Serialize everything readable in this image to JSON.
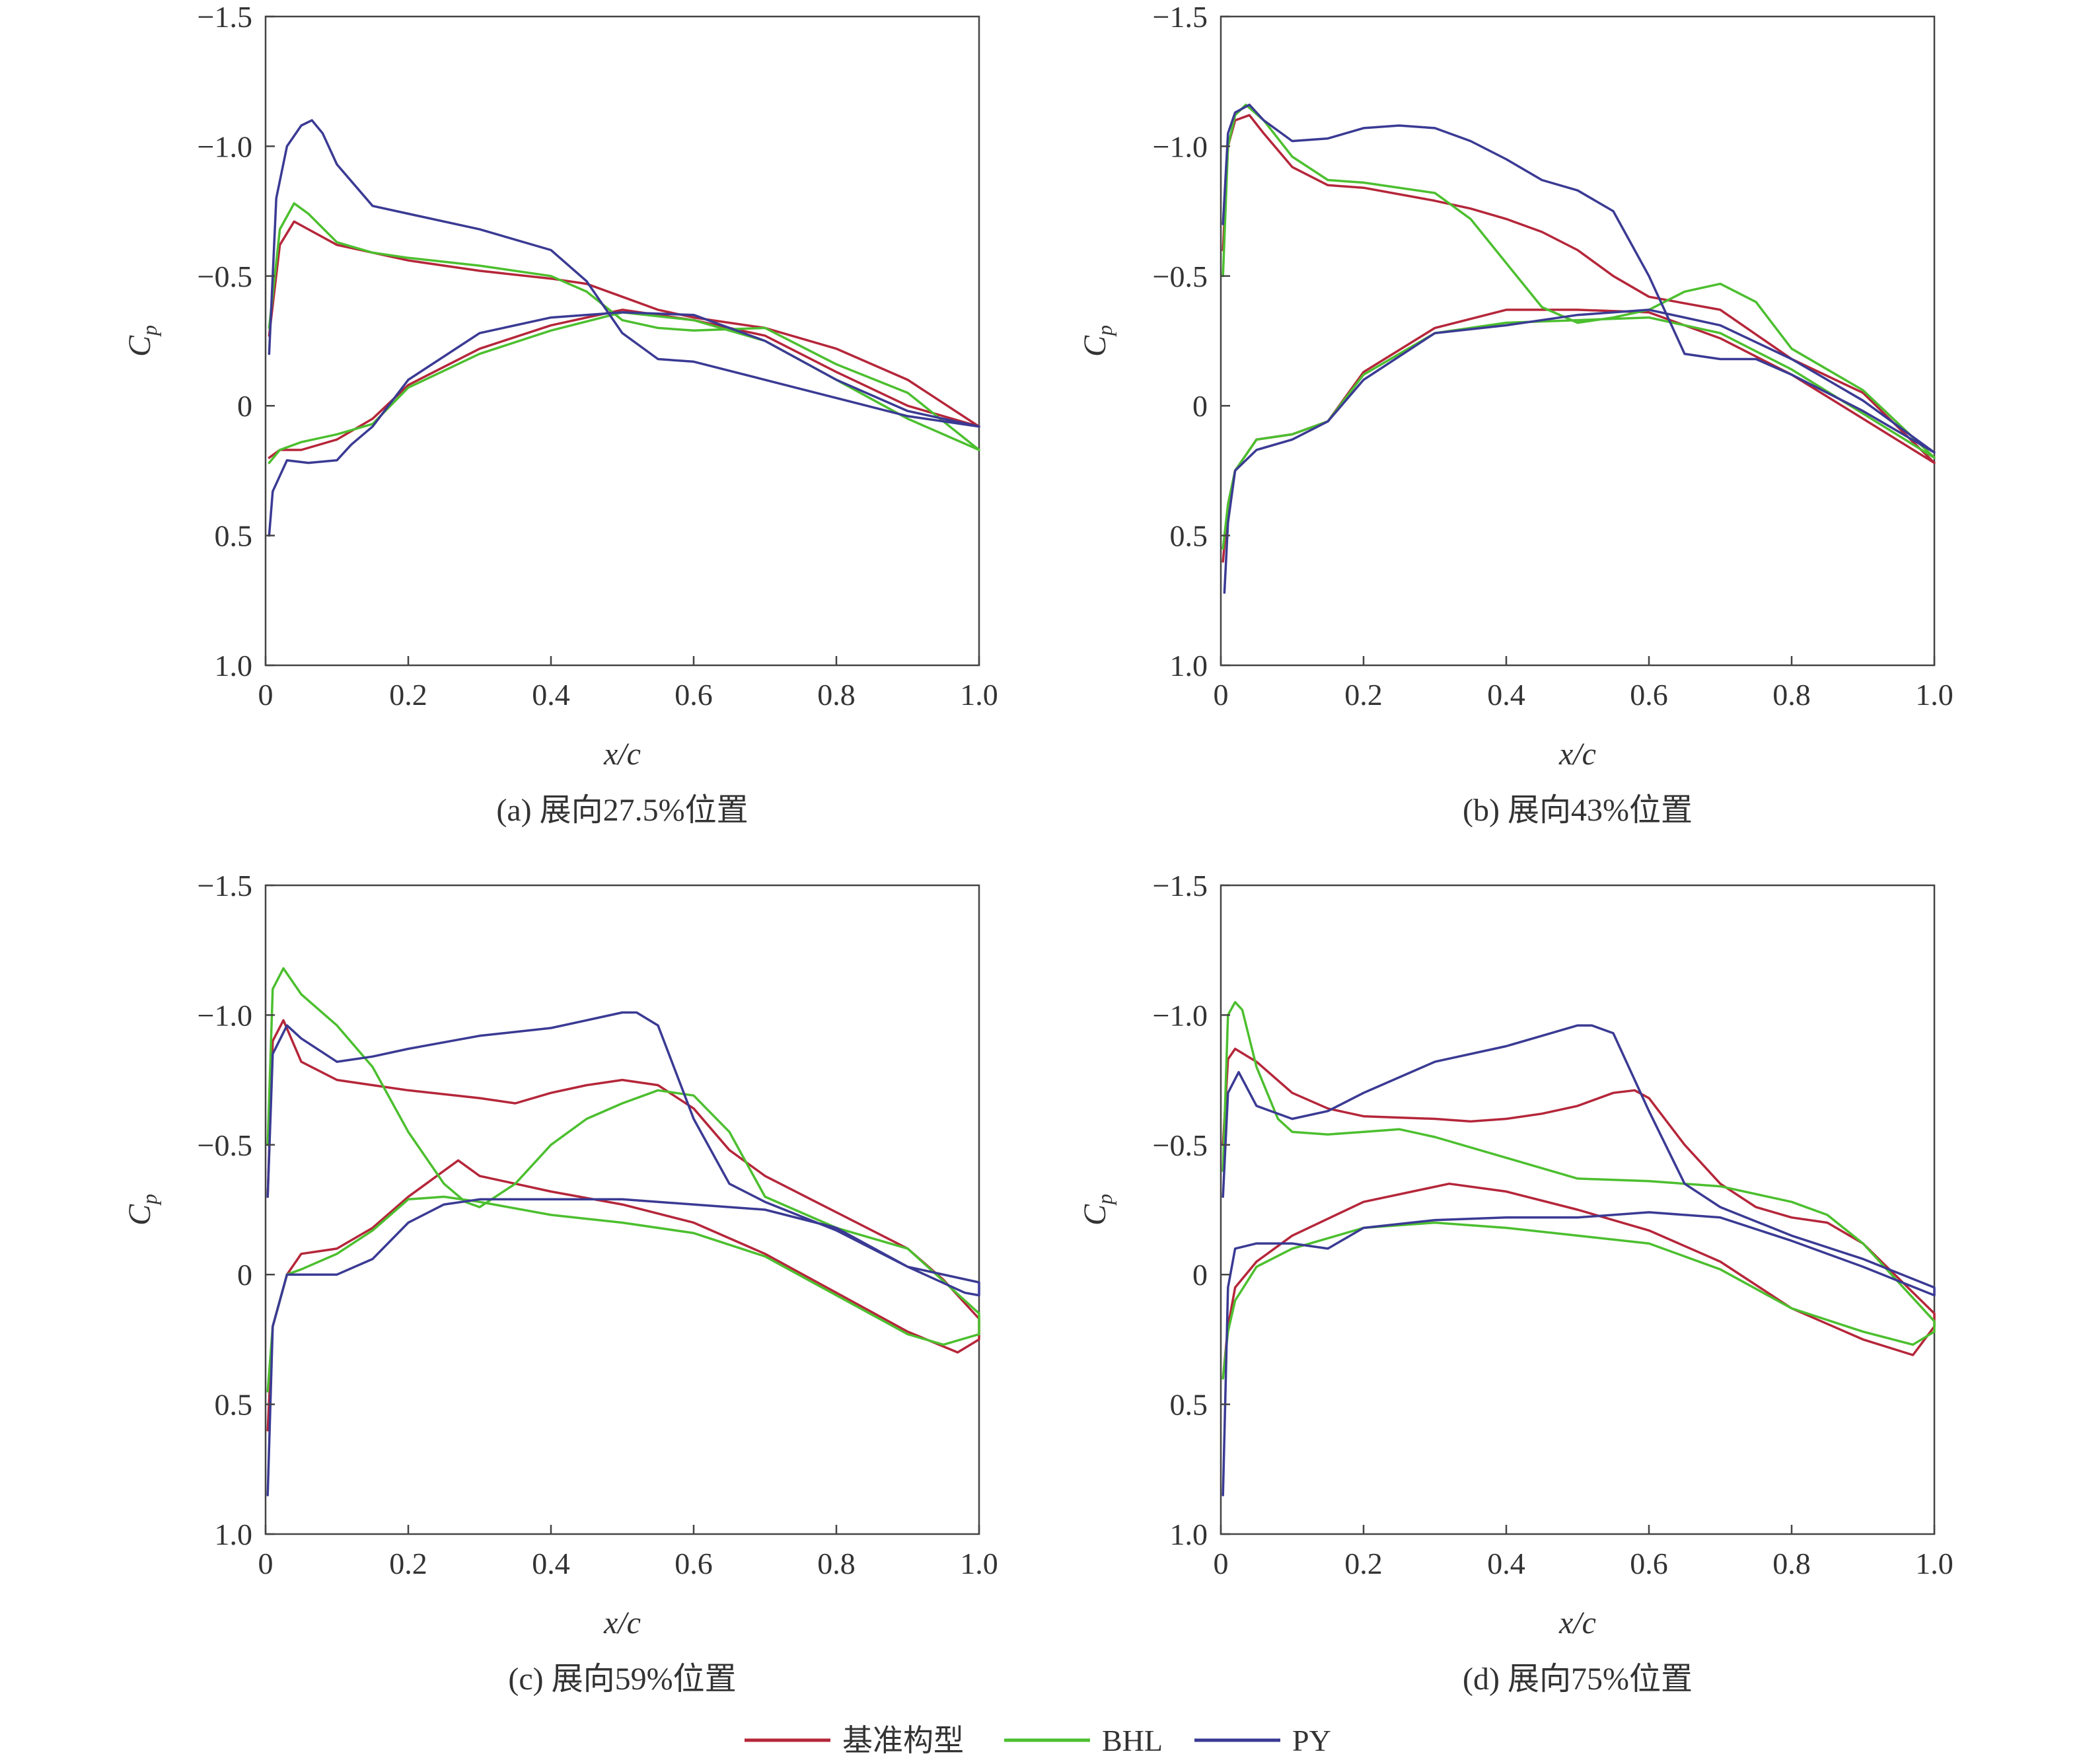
{
  "figure": {
    "series_colors": {
      "基准构型": "#b5263a",
      "BHL": "#4cbf2f",
      "PY": "#3a3a94"
    },
    "legend": [
      {
        "name": "基准构型",
        "color": "#b5263a"
      },
      {
        "name": "BHL",
        "color": "#4cbf2f"
      },
      {
        "name": "PY",
        "color": "#3a3a94"
      }
    ]
  },
  "chart_data": [
    {
      "type": "line",
      "caption": "(a) 展向27.5%位置",
      "xlabel": "x/c",
      "ylabel": "Cp",
      "xlim": [
        0,
        1.0
      ],
      "ylim": [
        -1.5,
        1.0
      ],
      "y_inverted": true,
      "xticks": [
        "0",
        "0.2",
        "0.4",
        "0.6",
        "0.8",
        "1.0"
      ],
      "yticks": [
        "−1.5",
        "−1.0",
        "−0.5",
        "0",
        "0.5",
        "1.0"
      ],
      "series": [
        {
          "name": "基准构型",
          "color": "#b5263a",
          "x": [
            0.005,
            0.02,
            0.04,
            0.06,
            0.1,
            0.15,
            0.2,
            0.3,
            0.4,
            0.45,
            0.5,
            0.55,
            0.6,
            0.7,
            0.8,
            0.9,
            1.0,
            1.0,
            0.9,
            0.8,
            0.7,
            0.6,
            0.5,
            0.4,
            0.3,
            0.2,
            0.15,
            0.1,
            0.05,
            0.02,
            0.005
          ],
          "y": [
            -0.27,
            -0.62,
            -0.71,
            -0.68,
            -0.62,
            -0.59,
            -0.56,
            -0.52,
            -0.49,
            -0.47,
            -0.42,
            -0.37,
            -0.34,
            -0.3,
            -0.22,
            -0.1,
            0.08,
            0.08,
            0.0,
            -0.13,
            -0.27,
            -0.33,
            -0.37,
            -0.31,
            -0.22,
            -0.08,
            0.05,
            0.13,
            0.17,
            0.17,
            0.2
          ]
        },
        {
          "name": "BHL",
          "color": "#4cbf2f",
          "x": [
            0.005,
            0.02,
            0.04,
            0.06,
            0.1,
            0.15,
            0.2,
            0.3,
            0.4,
            0.45,
            0.5,
            0.55,
            0.6,
            0.7,
            0.8,
            0.9,
            1.0,
            1.0,
            0.9,
            0.8,
            0.7,
            0.6,
            0.5,
            0.4,
            0.3,
            0.2,
            0.15,
            0.1,
            0.05,
            0.02,
            0.005
          ],
          "y": [
            -0.3,
            -0.68,
            -0.78,
            -0.74,
            -0.63,
            -0.59,
            -0.57,
            -0.54,
            -0.5,
            -0.44,
            -0.33,
            -0.3,
            -0.29,
            -0.3,
            -0.16,
            -0.05,
            0.17,
            0.17,
            0.05,
            -0.1,
            -0.25,
            -0.33,
            -0.36,
            -0.29,
            -0.2,
            -0.07,
            0.07,
            0.11,
            0.14,
            0.17,
            0.22
          ]
        },
        {
          "name": "PY",
          "color": "#3a3a94",
          "x": [
            0.005,
            0.015,
            0.03,
            0.05,
            0.065,
            0.08,
            0.1,
            0.15,
            0.2,
            0.3,
            0.4,
            0.45,
            0.5,
            0.55,
            0.6,
            0.7,
            0.8,
            0.9,
            1.0,
            1.0,
            0.9,
            0.8,
            0.7,
            0.6,
            0.5,
            0.4,
            0.3,
            0.2,
            0.15,
            0.12,
            0.1,
            0.06,
            0.03,
            0.01,
            0.005
          ],
          "y": [
            -0.2,
            -0.8,
            -1.0,
            -1.08,
            -1.1,
            -1.05,
            -0.93,
            -0.77,
            -0.74,
            -0.68,
            -0.6,
            -0.48,
            -0.28,
            -0.18,
            -0.17,
            -0.1,
            -0.03,
            0.04,
            0.08,
            0.08,
            0.02,
            -0.1,
            -0.25,
            -0.35,
            -0.36,
            -0.34,
            -0.28,
            -0.1,
            0.08,
            0.15,
            0.21,
            0.22,
            0.21,
            0.33,
            0.5
          ]
        }
      ]
    },
    {
      "type": "line",
      "caption": "(b) 展向43%位置",
      "xlabel": "x/c",
      "ylabel": "Cp",
      "xlim": [
        0,
        1.0
      ],
      "ylim": [
        -1.5,
        1.0
      ],
      "y_inverted": true,
      "xticks": [
        "0",
        "0.2",
        "0.4",
        "0.6",
        "0.8",
        "1.0"
      ],
      "yticks": [
        "−1.5",
        "−1.0",
        "−0.5",
        "0",
        "0.5",
        "1.0"
      ],
      "series": [
        {
          "name": "基准构型",
          "color": "#b5263a",
          "x": [
            0.003,
            0.01,
            0.02,
            0.04,
            0.06,
            0.1,
            0.15,
            0.2,
            0.3,
            0.35,
            0.4,
            0.45,
            0.5,
            0.55,
            0.6,
            0.7,
            0.8,
            0.9,
            1.0,
            1.0,
            0.9,
            0.8,
            0.7,
            0.6,
            0.5,
            0.4,
            0.3,
            0.2,
            0.15,
            0.1,
            0.05,
            0.02,
            0.01,
            0.003
          ],
          "y": [
            -0.6,
            -1.0,
            -1.1,
            -1.12,
            -1.05,
            -0.92,
            -0.85,
            -0.84,
            -0.79,
            -0.76,
            -0.72,
            -0.67,
            -0.6,
            -0.5,
            -0.42,
            -0.37,
            -0.18,
            -0.05,
            0.22,
            0.22,
            0.05,
            -0.12,
            -0.26,
            -0.36,
            -0.37,
            -0.37,
            -0.3,
            -0.13,
            0.06,
            0.11,
            0.13,
            0.25,
            0.38,
            0.6
          ]
        },
        {
          "name": "BHL",
          "color": "#4cbf2f",
          "x": [
            0.003,
            0.01,
            0.02,
            0.035,
            0.06,
            0.1,
            0.15,
            0.2,
            0.3,
            0.35,
            0.4,
            0.45,
            0.5,
            0.55,
            0.6,
            0.65,
            0.7,
            0.75,
            0.8,
            0.9,
            1.0,
            1.0,
            0.9,
            0.8,
            0.7,
            0.6,
            0.5,
            0.4,
            0.3,
            0.2,
            0.15,
            0.1,
            0.05,
            0.02,
            0.01,
            0.003
          ],
          "y": [
            -0.5,
            -1.0,
            -1.12,
            -1.16,
            -1.1,
            -0.96,
            -0.87,
            -0.86,
            -0.82,
            -0.72,
            -0.55,
            -0.38,
            -0.32,
            -0.34,
            -0.37,
            -0.44,
            -0.47,
            -0.4,
            -0.22,
            -0.06,
            0.2,
            0.2,
            0.03,
            -0.14,
            -0.28,
            -0.34,
            -0.33,
            -0.32,
            -0.28,
            -0.12,
            0.06,
            0.11,
            0.13,
            0.25,
            0.38,
            0.55
          ]
        },
        {
          "name": "PY",
          "color": "#3a3a94",
          "x": [
            0.003,
            0.01,
            0.02,
            0.04,
            0.06,
            0.1,
            0.15,
            0.2,
            0.25,
            0.3,
            0.35,
            0.4,
            0.45,
            0.5,
            0.55,
            0.6,
            0.65,
            0.7,
            0.75,
            0.8,
            0.9,
            1.0,
            1.0,
            0.9,
            0.8,
            0.7,
            0.6,
            0.5,
            0.4,
            0.3,
            0.2,
            0.15,
            0.1,
            0.05,
            0.02,
            0.01,
            0.005
          ],
          "y": [
            -0.7,
            -1.05,
            -1.13,
            -1.16,
            -1.1,
            -1.02,
            -1.03,
            -1.07,
            -1.08,
            -1.07,
            -1.02,
            -0.95,
            -0.87,
            -0.83,
            -0.75,
            -0.5,
            -0.2,
            -0.18,
            -0.18,
            -0.12,
            0.02,
            0.18,
            0.18,
            -0.02,
            -0.18,
            -0.31,
            -0.37,
            -0.35,
            -0.31,
            -0.28,
            -0.1,
            0.06,
            0.13,
            0.17,
            0.25,
            0.45,
            0.72
          ]
        }
      ]
    },
    {
      "type": "line",
      "caption": "(c) 展向59%位置",
      "xlabel": "x/c",
      "ylabel": "Cp",
      "xlim": [
        0,
        1.0
      ],
      "ylim": [
        -1.5,
        1.0
      ],
      "y_inverted": true,
      "xticks": [
        "0",
        "0.2",
        "0.4",
        "0.6",
        "0.8",
        "1.0"
      ],
      "yticks": [
        "−1.5",
        "−1.0",
        "−0.5",
        "0",
        "0.5",
        "1.0"
      ],
      "series": [
        {
          "name": "基准构型",
          "color": "#b5263a",
          "x": [
            0.003,
            0.01,
            0.025,
            0.05,
            0.1,
            0.15,
            0.2,
            0.3,
            0.35,
            0.4,
            0.45,
            0.5,
            0.55,
            0.6,
            0.65,
            0.7,
            0.8,
            0.9,
            0.95,
            1.0,
            1.0,
            0.97,
            0.9,
            0.8,
            0.7,
            0.6,
            0.5,
            0.4,
            0.3,
            0.27,
            0.2,
            0.15,
            0.1,
            0.05,
            0.03,
            0.01,
            0.003
          ],
          "y": [
            -0.3,
            -0.9,
            -0.98,
            -0.82,
            -0.75,
            -0.73,
            -0.71,
            -0.68,
            -0.66,
            -0.7,
            -0.73,
            -0.75,
            -0.73,
            -0.64,
            -0.48,
            -0.38,
            -0.24,
            -0.1,
            0.02,
            0.17,
            0.25,
            0.3,
            0.22,
            0.07,
            -0.08,
            -0.2,
            -0.27,
            -0.32,
            -0.38,
            -0.44,
            -0.3,
            -0.18,
            -0.1,
            -0.08,
            0.0,
            0.2,
            0.6
          ]
        },
        {
          "name": "BHL",
          "color": "#4cbf2f",
          "x": [
            0.003,
            0.01,
            0.025,
            0.05,
            0.1,
            0.15,
            0.2,
            0.25,
            0.28,
            0.3,
            0.35,
            0.4,
            0.45,
            0.5,
            0.55,
            0.6,
            0.65,
            0.7,
            0.8,
            0.9,
            1.0,
            1.0,
            0.95,
            0.9,
            0.8,
            0.7,
            0.6,
            0.5,
            0.4,
            0.3,
            0.25,
            0.2,
            0.15,
            0.1,
            0.05,
            0.03,
            0.01,
            0.003
          ],
          "y": [
            -0.5,
            -1.1,
            -1.18,
            -1.08,
            -0.96,
            -0.8,
            -0.55,
            -0.35,
            -0.28,
            -0.26,
            -0.35,
            -0.5,
            -0.6,
            -0.66,
            -0.71,
            -0.69,
            -0.55,
            -0.3,
            -0.18,
            -0.1,
            0.15,
            0.23,
            0.27,
            0.23,
            0.08,
            -0.07,
            -0.16,
            -0.2,
            -0.23,
            -0.28,
            -0.3,
            -0.29,
            -0.17,
            -0.08,
            -0.02,
            0.0,
            0.2,
            0.45
          ]
        },
        {
          "name": "PY",
          "color": "#3a3a94",
          "x": [
            0.003,
            0.01,
            0.03,
            0.05,
            0.1,
            0.15,
            0.2,
            0.3,
            0.4,
            0.45,
            0.5,
            0.52,
            0.55,
            0.6,
            0.65,
            0.7,
            0.8,
            0.9,
            1.0,
            1.0,
            0.98,
            0.9,
            0.8,
            0.7,
            0.6,
            0.5,
            0.4,
            0.3,
            0.25,
            0.2,
            0.15,
            0.1,
            0.05,
            0.03,
            0.01,
            0.003
          ],
          "y": [
            -0.3,
            -0.85,
            -0.96,
            -0.91,
            -0.82,
            -0.84,
            -0.87,
            -0.92,
            -0.95,
            -0.98,
            -1.01,
            -1.01,
            -0.96,
            -0.6,
            -0.35,
            -0.28,
            -0.17,
            -0.03,
            0.03,
            0.08,
            0.07,
            -0.03,
            -0.18,
            -0.25,
            -0.27,
            -0.29,
            -0.29,
            -0.29,
            -0.27,
            -0.2,
            -0.06,
            0.0,
            0.0,
            0.0,
            0.2,
            0.85
          ]
        }
      ]
    },
    {
      "type": "line",
      "caption": "(d) 展向75%位置",
      "xlabel": "x/c",
      "ylabel": "Cp",
      "xlim": [
        0,
        1.0
      ],
      "ylim": [
        -1.5,
        1.0
      ],
      "y_inverted": true,
      "xticks": [
        "0",
        "0.2",
        "0.4",
        "0.6",
        "0.8",
        "1.0"
      ],
      "yticks": [
        "−1.5",
        "−1.0",
        "−0.5",
        "0",
        "0.5",
        "1.0"
      ],
      "series": [
        {
          "name": "基准构型",
          "color": "#b5263a",
          "x": [
            0.003,
            0.01,
            0.02,
            0.05,
            0.1,
            0.15,
            0.2,
            0.3,
            0.35,
            0.4,
            0.45,
            0.5,
            0.55,
            0.58,
            0.6,
            0.65,
            0.7,
            0.75,
            0.8,
            0.85,
            0.9,
            1.0,
            1.0,
            0.97,
            0.9,
            0.8,
            0.7,
            0.6,
            0.5,
            0.4,
            0.32,
            0.2,
            0.1,
            0.05,
            0.02,
            0.01,
            0.003
          ],
          "y": [
            -0.5,
            -0.83,
            -0.87,
            -0.82,
            -0.7,
            -0.64,
            -0.61,
            -0.6,
            -0.59,
            -0.6,
            -0.62,
            -0.65,
            -0.7,
            -0.71,
            -0.68,
            -0.5,
            -0.35,
            -0.26,
            -0.22,
            -0.2,
            -0.12,
            0.15,
            0.2,
            0.31,
            0.25,
            0.13,
            -0.05,
            -0.17,
            -0.25,
            -0.32,
            -0.35,
            -0.28,
            -0.15,
            -0.05,
            0.05,
            0.2,
            0.4
          ]
        },
        {
          "name": "BHL",
          "color": "#4cbf2f",
          "x": [
            0.003,
            0.01,
            0.02,
            0.03,
            0.05,
            0.08,
            0.1,
            0.15,
            0.2,
            0.25,
            0.3,
            0.4,
            0.5,
            0.6,
            0.7,
            0.8,
            0.85,
            0.9,
            1.0,
            1.0,
            0.97,
            0.9,
            0.8,
            0.7,
            0.6,
            0.5,
            0.4,
            0.3,
            0.2,
            0.1,
            0.05,
            0.02,
            0.01,
            0.003
          ],
          "y": [
            -0.4,
            -1.0,
            -1.05,
            -1.02,
            -0.8,
            -0.6,
            -0.55,
            -0.54,
            -0.55,
            -0.56,
            -0.53,
            -0.45,
            -0.37,
            -0.36,
            -0.34,
            -0.28,
            -0.23,
            -0.12,
            0.18,
            0.22,
            0.27,
            0.22,
            0.13,
            -0.02,
            -0.12,
            -0.15,
            -0.18,
            -0.2,
            -0.18,
            -0.1,
            -0.03,
            0.1,
            0.22,
            0.4
          ]
        },
        {
          "name": "PY",
          "color": "#3a3a94",
          "x": [
            0.003,
            0.01,
            0.025,
            0.05,
            0.1,
            0.15,
            0.2,
            0.3,
            0.4,
            0.45,
            0.5,
            0.52,
            0.55,
            0.6,
            0.65,
            0.7,
            0.8,
            0.9,
            1.0,
            1.0,
            0.9,
            0.8,
            0.7,
            0.6,
            0.5,
            0.4,
            0.3,
            0.2,
            0.15,
            0.1,
            0.05,
            0.02,
            0.01,
            0.003
          ],
          "y": [
            -0.3,
            -0.7,
            -0.78,
            -0.65,
            -0.6,
            -0.63,
            -0.7,
            -0.82,
            -0.88,
            -0.92,
            -0.96,
            -0.96,
            -0.93,
            -0.63,
            -0.35,
            -0.26,
            -0.15,
            -0.06,
            0.05,
            0.08,
            -0.03,
            -0.13,
            -0.22,
            -0.24,
            -0.22,
            -0.22,
            -0.21,
            -0.18,
            -0.1,
            -0.12,
            -0.12,
            -0.1,
            0.05,
            0.85
          ]
        }
      ]
    }
  ]
}
